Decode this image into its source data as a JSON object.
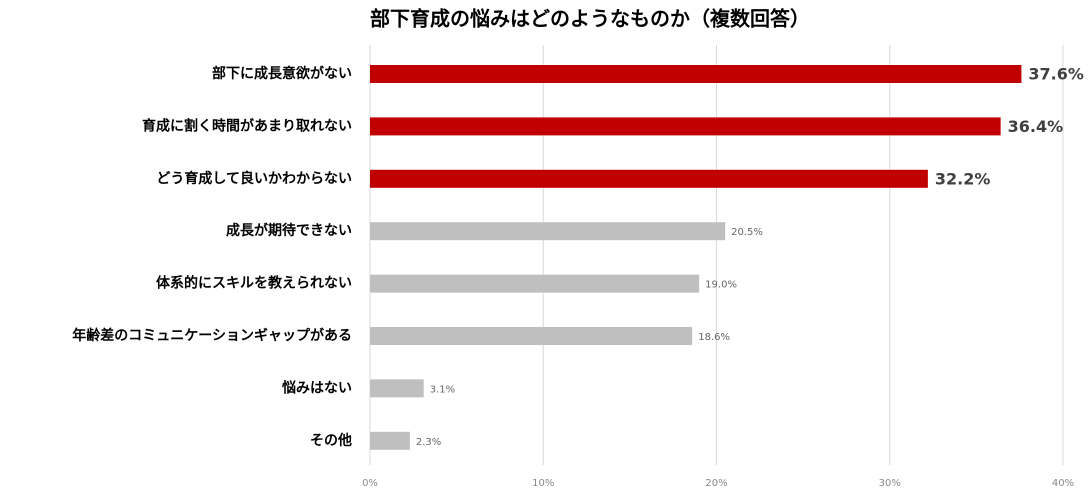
{
  "chart_data": {
    "type": "bar",
    "orientation": "horizontal",
    "title": "部下育成の悩みはどのようなものか（複数回答）",
    "categories": [
      "部下に成長意欲がない",
      "育成に割く時間があまり取れない",
      "どう育成して良いかわからない",
      "成長が期待できない",
      "体系的にスキルを教えられない",
      "年齢差のコミュニケーションギャップがある",
      "悩みはない",
      "その他"
    ],
    "values": [
      37.6,
      36.4,
      32.2,
      20.5,
      19.0,
      18.6,
      3.1,
      2.3
    ],
    "value_labels": [
      "37.6%",
      "36.4%",
      "32.2%",
      "20.5%",
      "19.0%",
      "18.6%",
      "3.1%",
      "2.3%"
    ],
    "colors": [
      "#c00000",
      "#c00000",
      "#c00000",
      "#bfbfbf",
      "#bfbfbf",
      "#bfbfbf",
      "#bfbfbf",
      "#bfbfbf"
    ],
    "xlim": [
      0,
      40
    ],
    "xticks": [
      {
        "value": 0,
        "label": "0%"
      },
      {
        "value": 10,
        "label": "10%"
      },
      {
        "value": 20,
        "label": "20%"
      },
      {
        "value": 30,
        "label": "30%"
      },
      {
        "value": 40,
        "label": "40%"
      }
    ],
    "grid": true
  }
}
